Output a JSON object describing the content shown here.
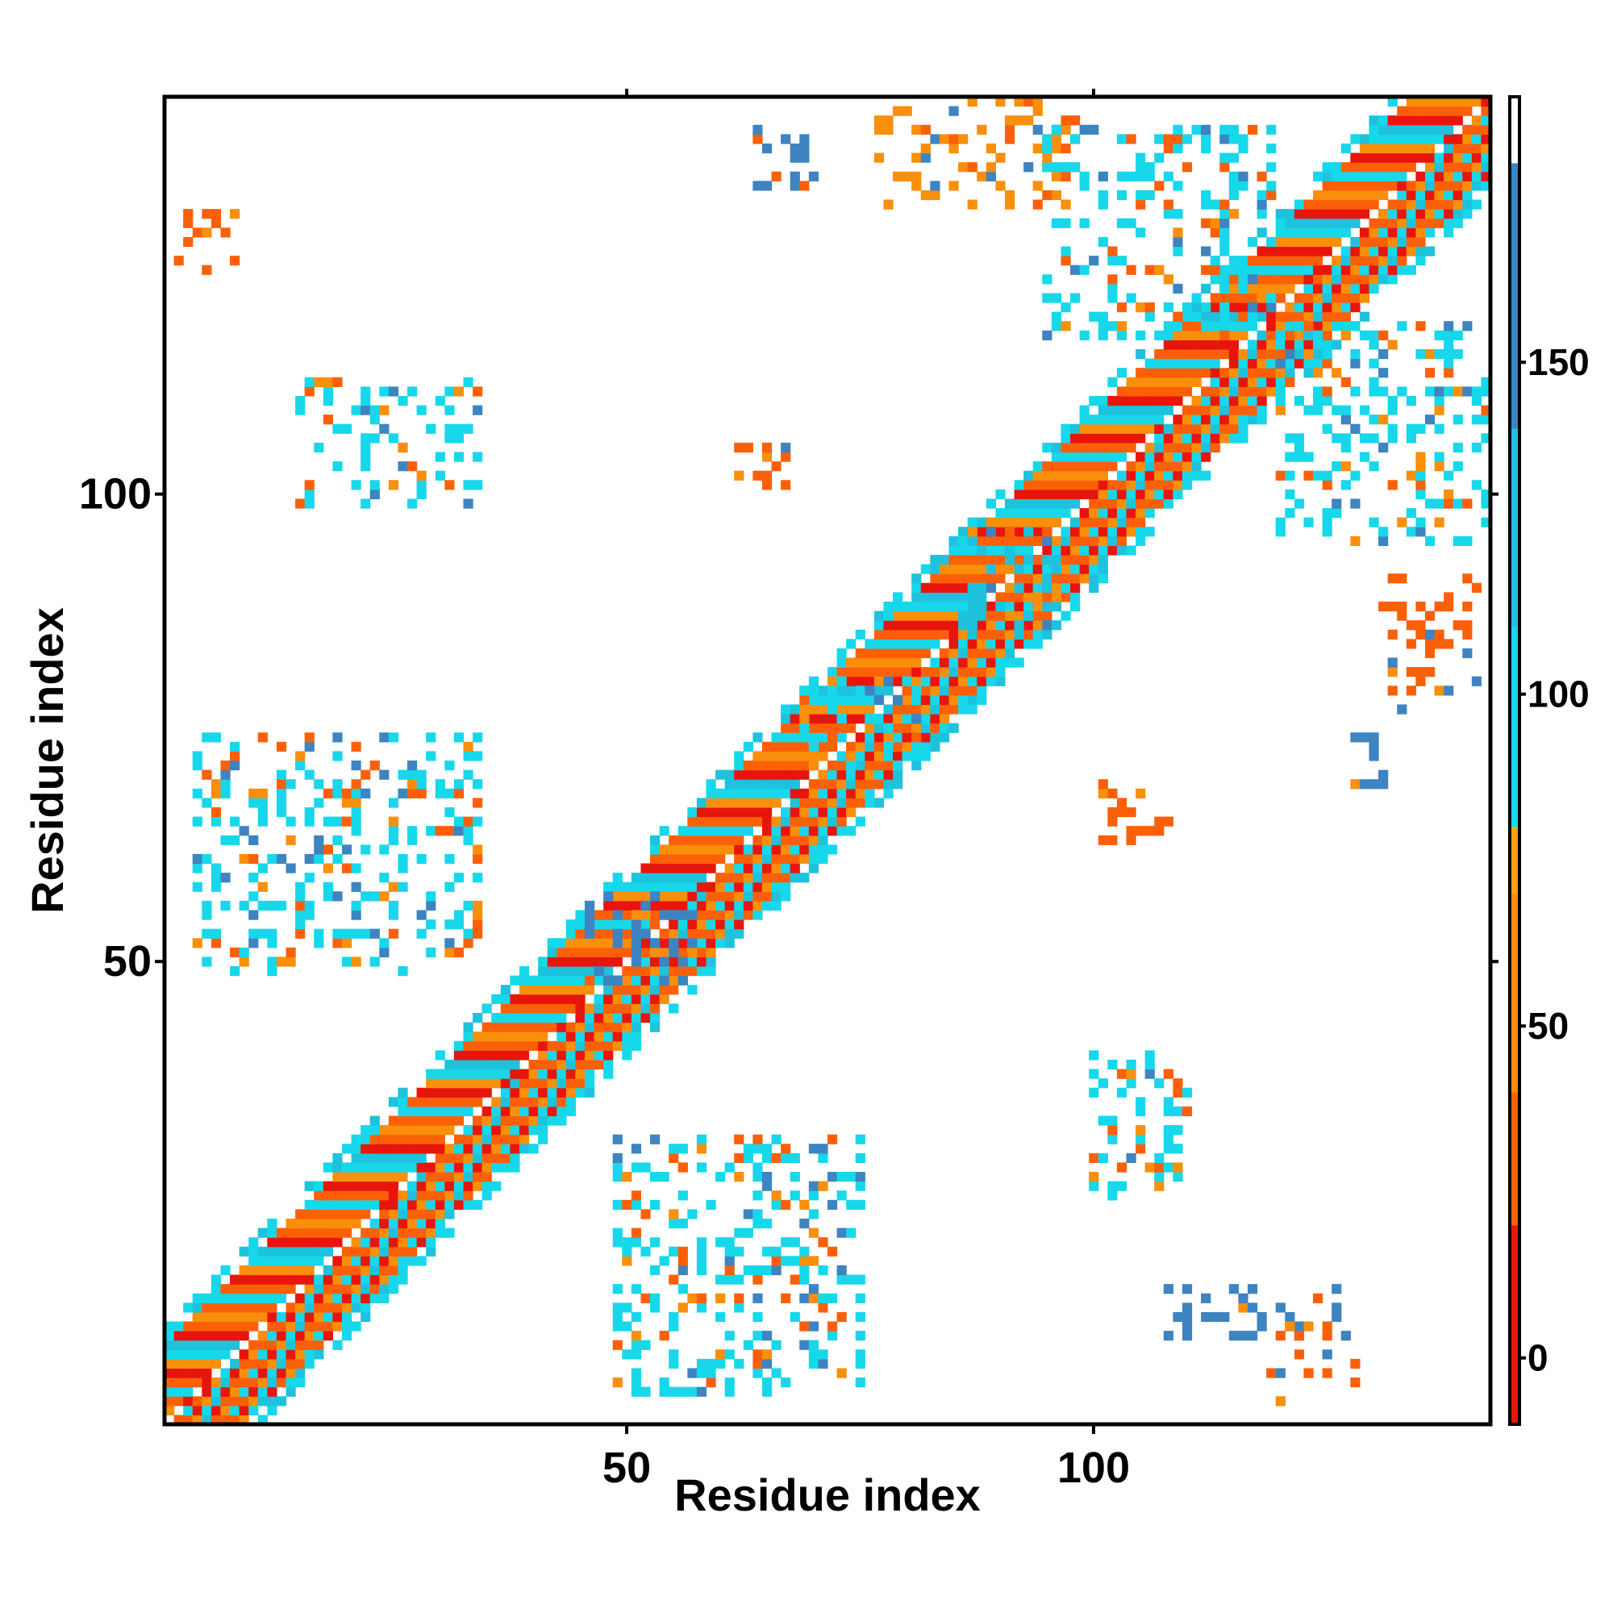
{
  "chart_data": {
    "type": "heatmap",
    "title": "",
    "xlabel": "Residue index",
    "ylabel": "Residue index",
    "xlim": [
      0.5,
      142.5
    ],
    "ylim": [
      0.5,
      142.5
    ],
    "x_ticks": [
      50,
      100
    ],
    "y_ticks": [
      50,
      100
    ],
    "grid": false,
    "legend": "colorbar-right",
    "colorbar": {
      "range": [
        -10,
        190
      ],
      "ticks": [
        0,
        50,
        100,
        150
      ],
      "stops": [
        {
          "from": -10,
          "to": 20,
          "color": "#e8150d"
        },
        {
          "from": 20,
          "to": 40,
          "color": "#fb6009"
        },
        {
          "from": 40,
          "to": 70,
          "color": "#f98f0b"
        },
        {
          "from": 70,
          "to": 80,
          "color": "#f7a50c"
        },
        {
          "from": 80,
          "to": 110,
          "color": "#17d8ea"
        },
        {
          "from": 110,
          "to": 140,
          "color": "#1ec2dc"
        },
        {
          "from": 140,
          "to": 180,
          "color": "#3e84c0"
        },
        {
          "from": 180,
          "to": 190,
          "color": "#ffffff"
        }
      ]
    },
    "palette": {
      "red": "#e8150d",
      "orange": "#fb6009",
      "amber": "#f7a50c",
      "cyan": "#17d8ea",
      "teal": "#1ec2dc",
      "blue": "#3e84c0"
    },
    "band": {
      "start": 1,
      "end": 142,
      "width": 10,
      "value_cycle": [
        10,
        30,
        60,
        30,
        90,
        30,
        10,
        60,
        90,
        120
      ]
    },
    "blocks": [
      {
        "x": [
          2,
          8
        ],
        "y": [
          124,
          130
        ],
        "value": 30,
        "note": "upper-left contact patch"
      },
      {
        "x": [
          15,
          34
        ],
        "y": [
          99,
          112
        ],
        "value": 100
      },
      {
        "x": [
          4,
          34
        ],
        "y": [
          49,
          74
        ],
        "value": 100
      },
      {
        "x": [
          49,
          75
        ],
        "y": [
          4,
          31
        ],
        "value": 100
      },
      {
        "x": [
          100,
          110
        ],
        "y": [
          25,
          40
        ],
        "value": 100
      },
      {
        "x": [
          108,
          126
        ],
        "y": [
          10,
          15
        ],
        "value": 140
      },
      {
        "x": [
          118,
          128
        ],
        "y": [
          3,
          11
        ],
        "value": 30
      },
      {
        "x": [
          64,
          70
        ],
        "y": [
          133,
          139
        ],
        "value": 140
      },
      {
        "x": [
          77,
          98
        ],
        "y": [
          131,
          142
        ],
        "value": 40
      },
      {
        "x": [
          95,
          119
        ],
        "y": [
          117,
          139
        ],
        "value": 100
      },
      {
        "x": [
          120,
          142
        ],
        "y": [
          95,
          118
        ],
        "value": 100
      },
      {
        "x": [
          131,
          141
        ],
        "y": [
          77,
          91
        ],
        "value": 30
      },
      {
        "x": [
          62,
          67
        ],
        "y": [
          101,
          106
        ],
        "value": 30
      },
      {
        "x": [
          101,
          108
        ],
        "y": [
          63,
          69
        ],
        "value": 30
      },
      {
        "x": [
          128,
          133
        ],
        "y": [
          69,
          74
        ],
        "value": 140
      },
      {
        "x": [
          69,
          81
        ],
        "y": [
          70,
          80
        ],
        "value": 100
      },
      {
        "x": [
          46,
          57
        ],
        "y": [
          48,
          57
        ],
        "value": 140
      },
      {
        "x": [
          86,
          96
        ],
        "y": [
          86,
          96
        ],
        "value": 120
      }
    ]
  }
}
